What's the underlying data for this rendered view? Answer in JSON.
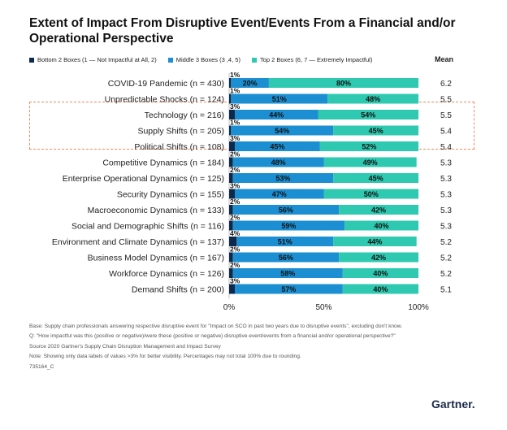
{
  "title": {
    "line1": "Extent of Impact From Disruptive Event/Events From a Financial and/or",
    "line2": "Operational Perspective"
  },
  "legend": {
    "bottom2": "Bottom 2 Boxes (1 — Not Impactful at All, 2)",
    "middle3": "Middle 3 Boxes (3 ,4, 5)",
    "top2": "Top 2 Boxes (6, 7 — Extremely Impactful)"
  },
  "mean_header": "Mean",
  "colors": {
    "bottom2": "#0d2a4d",
    "middle3": "#1b8fd2",
    "top2": "#2ec9b0"
  },
  "chart_data": {
    "type": "bar",
    "orientation": "horizontal-stacked",
    "x_ticks": [
      "0%",
      "50%",
      "100%"
    ],
    "xlim": [
      0,
      100
    ],
    "highlighted_categories": [
      "Technology (n = 216)",
      "Supply Shifts (n = 205)",
      "Political Shifts (n = 108)"
    ],
    "categories": [
      "COVID-19 Pandemic (n = 430)",
      "Unpredictable Shocks (n = 124)",
      "Technology (n = 216)",
      "Supply Shifts (n = 205)",
      "Political Shifts (n = 108)",
      "Competitive Dynamics (n = 184)",
      "Enterprise Operational Dynamics (n = 125)",
      "Security Dynamics (n = 155)",
      "Macroeconomic Dynamics (n = 133)",
      "Social and Demographic Shifts (n = 116)",
      "Environment and Climate Dynamics (n = 137)",
      "Business Model Dynamics (n = 167)",
      "Workforce Dynamics (n = 126)",
      "Demand Shifts (n = 200)"
    ],
    "series": [
      {
        "name": "Bottom 2 Boxes",
        "values": [
          1,
          1,
          3,
          1,
          3,
          2,
          2,
          3,
          2,
          2,
          4,
          2,
          2,
          3
        ],
        "labels": [
          "1%",
          "1%",
          "3%",
          "1%",
          "3%",
          "2%",
          "2%",
          "3%",
          "2%",
          "2%",
          "4%",
          "2%",
          "2%",
          "3%"
        ]
      },
      {
        "name": "Middle 3 Boxes",
        "values": [
          20,
          51,
          44,
          54,
          45,
          48,
          53,
          47,
          56,
          59,
          51,
          56,
          58,
          57
        ],
        "labels": [
          "20%",
          "51%",
          "44%",
          "54%",
          "45%",
          "48%",
          "53%",
          "47%",
          "56%",
          "59%",
          "51%",
          "56%",
          "58%",
          "57%"
        ]
      },
      {
        "name": "Top 2 Boxes",
        "values": [
          80,
          48,
          54,
          45,
          52,
          49,
          45,
          50,
          42,
          40,
          44,
          42,
          40,
          40
        ],
        "labels": [
          "80%",
          "48%",
          "54%",
          "45%",
          "52%",
          "49%",
          "45%",
          "50%",
          "42%",
          "40%",
          "44%",
          "42%",
          "40%",
          "40%"
        ]
      }
    ],
    "means": [
      "6.2",
      "5.5",
      "5.5",
      "5.4",
      "5.4",
      "5.3",
      "5.3",
      "5.3",
      "5.3",
      "5.3",
      "5.2",
      "5.2",
      "5.2",
      "5.1"
    ]
  },
  "notes": {
    "base": "Base: Supply chain professionals answering respective disruptive event for \"Impact on SCO in past two years due to disruptive events\", excluding don't know.",
    "question": "Q: \"How impactful was this (positive or negative)/were these (positive or negative) disruptive event/events from a financial and/or operational perspective?\"",
    "source": "Source 2020 Gartner's Supply Chain Disruption Management and Impact Survey",
    "note": "Note: Showing only data labels of values >3% for better visibility. Percentages may not total 100% due to rounding.",
    "id": "735164_C"
  },
  "brand": "Gartner."
}
